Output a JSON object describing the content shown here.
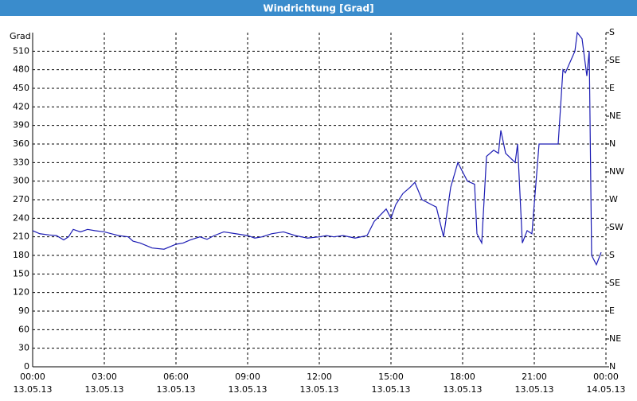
{
  "chart_data": {
    "type": "line",
    "title": "Windrichtung [Grad]",
    "y_label": "Grad",
    "x": [
      0,
      0.3,
      0.7,
      1,
      1.3,
      1.5,
      1.7,
      2,
      2.3,
      2.6,
      3,
      3.3,
      3.6,
      4,
      4.2,
      4.5,
      5,
      5.5,
      6,
      6.3,
      6.6,
      7,
      7.3,
      7.6,
      8,
      8.5,
      9,
      9.3,
      9.6,
      10,
      10.5,
      11,
      11.5,
      12,
      12.3,
      12.6,
      13,
      13.5,
      14,
      14.3,
      14.8,
      15,
      15.2,
      15.5,
      15.8,
      16,
      16.3,
      16.7,
      16.9,
      17.2,
      17.5,
      17.8,
      18.2,
      18.5,
      18.6,
      18.8,
      19,
      19.3,
      19.5,
      19.6,
      19.8,
      20.2,
      20.3,
      20.5,
      20.7,
      20.9,
      21.2,
      22,
      22.2,
      22.3,
      22.7,
      22.8,
      23,
      23.2,
      23.3,
      23.4,
      23.6,
      23.8
    ],
    "series": [
      {
        "name": "Windrichtung",
        "color": "#1c1cb4",
        "axis": "y",
        "values": [
          220,
          215,
          213,
          212,
          205,
          210,
          222,
          218,
          222,
          220,
          218,
          215,
          212,
          210,
          203,
          200,
          192,
          190,
          198,
          200,
          205,
          210,
          206,
          212,
          218,
          215,
          212,
          208,
          210,
          215,
          218,
          212,
          208,
          210,
          212,
          210,
          212,
          208,
          212,
          235,
          255,
          240,
          262,
          280,
          290,
          298,
          270,
          262,
          258,
          210,
          290,
          330,
          300,
          295,
          215,
          200,
          340,
          350,
          345,
          382,
          345,
          330,
          360,
          200,
          220,
          215,
          360,
          360,
          480,
          475,
          510,
          540,
          530,
          470,
          510,
          180,
          165,
          185
        ]
      }
    ],
    "xlim": [
      0,
      24
    ],
    "xticks": [
      {
        "value": 0,
        "label": "00:00"
      },
      {
        "value": 3,
        "label": "03:00"
      },
      {
        "value": 6,
        "label": "06:00"
      },
      {
        "value": 9,
        "label": "09:00"
      },
      {
        "value": 12,
        "label": "12:00"
      },
      {
        "value": 15,
        "label": "15:00"
      },
      {
        "value": 18,
        "label": "18:00"
      },
      {
        "value": 21,
        "label": "21:00"
      },
      {
        "value": 24,
        "label": "00:00"
      }
    ],
    "xtick_dates": [
      "13.05.13",
      "13.05.13",
      "13.05.13",
      "13.05.13",
      "13.05.13",
      "13.05.13",
      "13.05.13",
      "13.05.13",
      "14.05.13"
    ],
    "ylim": [
      0,
      540
    ],
    "yticks": [
      0,
      30,
      60,
      90,
      120,
      150,
      180,
      210,
      240,
      270,
      300,
      330,
      360,
      390,
      420,
      450,
      480,
      510
    ],
    "y2lim": [
      0,
      540
    ],
    "y2ticks": [
      {
        "value": 0,
        "label": "N"
      },
      {
        "value": 45,
        "label": "NE"
      },
      {
        "value": 90,
        "label": "E"
      },
      {
        "value": 135,
        "label": "SE"
      },
      {
        "value": 180,
        "label": "S"
      },
      {
        "value": 225,
        "label": "SW"
      },
      {
        "value": 270,
        "label": "W"
      },
      {
        "value": 315,
        "label": "NW"
      },
      {
        "value": 360,
        "label": "N"
      },
      {
        "value": 405,
        "label": "NE"
      },
      {
        "value": 450,
        "label": "E"
      },
      {
        "value": 495,
        "label": "SE"
      },
      {
        "value": 540,
        "label": "S"
      }
    ],
    "grid": true
  }
}
